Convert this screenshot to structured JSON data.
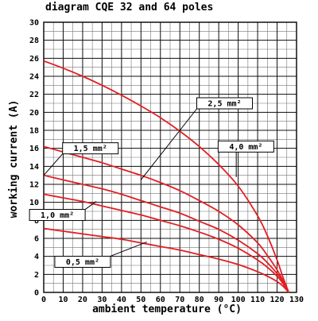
{
  "chart_data": {
    "type": "line",
    "title": "diagram CQE 32 and 64 poles",
    "xlabel": "ambient temperature (°C)",
    "ylabel": "working current (A)",
    "xlim": [
      0,
      130
    ],
    "ylim": [
      0,
      30
    ],
    "x_major_ticks": [
      0,
      10,
      20,
      30,
      40,
      50,
      60,
      70,
      80,
      90,
      100,
      110,
      120,
      130
    ],
    "y_major_ticks": [
      0,
      2,
      4,
      6,
      8,
      10,
      12,
      14,
      16,
      18,
      20,
      22,
      24,
      26,
      28,
      30
    ],
    "grid": true,
    "line_color": "#e31e24",
    "series": [
      {
        "name": "4,0 mm²",
        "x": [
          0,
          10,
          20,
          30,
          40,
          50,
          60,
          70,
          80,
          90,
          100,
          110,
          115,
          120,
          123,
          126
        ],
        "y": [
          25.7,
          24.9,
          24.0,
          23.0,
          21.9,
          20.7,
          19.4,
          17.9,
          16.2,
          14.2,
          11.8,
          8.5,
          6.3,
          3.6,
          1.7,
          0
        ]
      },
      {
        "name": "2,5 mm²",
        "x": [
          0,
          10,
          20,
          30,
          40,
          50,
          60,
          70,
          80,
          90,
          100,
          110,
          115,
          120,
          123,
          126
        ],
        "y": [
          16.2,
          15.6,
          15.0,
          14.4,
          13.7,
          13.0,
          12.2,
          11.3,
          10.2,
          9.0,
          7.5,
          5.5,
          4.1,
          2.5,
          1.3,
          0
        ]
      },
      {
        "name": "1,5 mm²",
        "x": [
          0,
          10,
          20,
          30,
          40,
          50,
          60,
          70,
          80,
          90,
          100,
          110,
          115,
          120,
          123,
          126
        ],
        "y": [
          13.0,
          12.5,
          12.0,
          11.5,
          10.9,
          10.2,
          9.5,
          8.8,
          7.9,
          7.0,
          5.8,
          4.3,
          3.3,
          2.1,
          1.2,
          0
        ]
      },
      {
        "name": "1,0 mm²",
        "x": [
          0,
          10,
          20,
          30,
          40,
          50,
          60,
          70,
          80,
          90,
          100,
          110,
          115,
          120,
          123,
          126
        ],
        "y": [
          10.9,
          10.5,
          10.1,
          9.6,
          9.1,
          8.6,
          8.0,
          7.4,
          6.7,
          5.9,
          4.9,
          3.6,
          2.8,
          1.8,
          1.0,
          0
        ]
      },
      {
        "name": "0,5 mm²",
        "x": [
          0,
          10,
          20,
          30,
          40,
          50,
          60,
          70,
          80,
          90,
          100,
          110,
          115,
          120,
          123,
          126
        ],
        "y": [
          7.1,
          6.8,
          6.5,
          6.2,
          5.9,
          5.5,
          5.1,
          4.7,
          4.2,
          3.7,
          3.1,
          2.3,
          1.8,
          1.2,
          0.7,
          0
        ]
      }
    ],
    "callouts": [
      {
        "label": "2,5 mm²",
        "series": "1,5 mm²",
        "box_at": [
          93,
          21.0
        ],
        "arrow_to": [
          50,
          12.5
        ]
      },
      {
        "label": "1,5 mm²",
        "series": "2,5 mm²",
        "box_at": [
          24,
          16.0
        ],
        "arrow_to": [
          0,
          13.0
        ]
      },
      {
        "label": "4,0 mm²",
        "series": "4,0 mm²",
        "box_at": [
          104,
          16.2
        ],
        "arrow_to": [
          99,
          12.8
        ]
      },
      {
        "label": "1,0 mm²",
        "series": "1,0 mm²",
        "box_at": [
          7,
          8.6
        ],
        "arrow_to": [
          27,
          10.1
        ]
      },
      {
        "label": "0,5 mm²",
        "series": "0,5 mm²",
        "box_at": [
          20,
          3.4
        ],
        "arrow_to": [
          53,
          5.6
        ]
      }
    ]
  }
}
